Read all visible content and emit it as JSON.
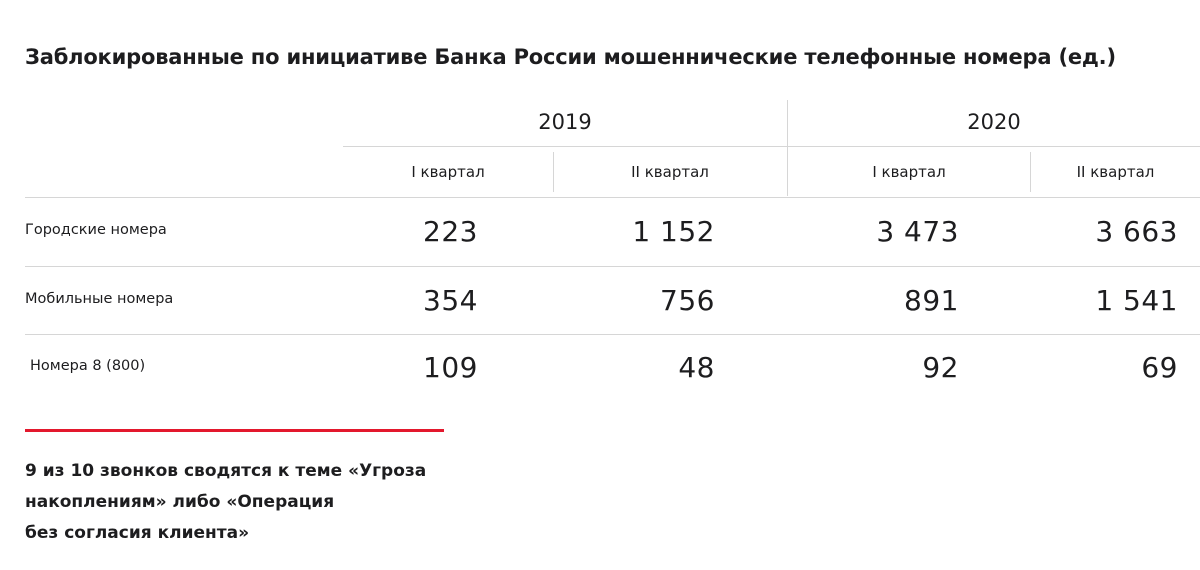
{
  "title": "Заблокированные по инициативе Банка России мошеннические телефонные номера (ед.)",
  "years": [
    "2019",
    "2020"
  ],
  "quarters": [
    "I квартал",
    "II квартал",
    "I квартал",
    "II квартал"
  ],
  "rows": [
    {
      "label": "Городские номера",
      "values": [
        "223",
        "1 152",
        "3 473",
        "3 663"
      ]
    },
    {
      "label": "Мобильные номера",
      "values": [
        "354",
        "756",
        "891",
        "1 541"
      ]
    },
    {
      "label": "Номера 8 (800)",
      "values": [
        "109",
        "48",
        "92",
        "69"
      ]
    }
  ],
  "note": {
    "line1": "9 из 10 звонков сводятся к теме «Угроза",
    "line2": "накоплениям» либо «Операция",
    "line3": "без согласия клиента»"
  },
  "colors": {
    "accent": "#e3182d",
    "text": "#1d1d1f",
    "divider": "#d6d6d6"
  }
}
